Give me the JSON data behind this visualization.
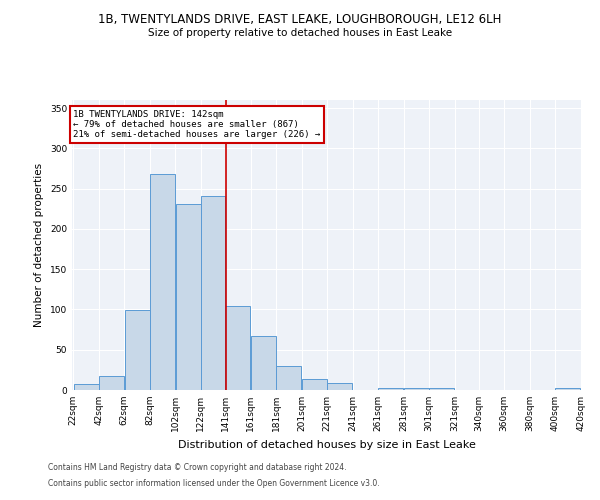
{
  "title1": "1B, TWENTYLANDS DRIVE, EAST LEAKE, LOUGHBOROUGH, LE12 6LH",
  "title2": "Size of property relative to detached houses in East Leake",
  "xlabel": "Distribution of detached houses by size in East Leake",
  "ylabel": "Number of detached properties",
  "bar_color": "#c8d8e8",
  "bar_edge_color": "#5b9bd5",
  "background_color": "#eef2f8",
  "grid_color": "#ffffff",
  "annotation_line_color": "#cc0000",
  "annotation_box_color": "#cc0000",
  "annotation_text": "1B TWENTYLANDS DRIVE: 142sqm\n← 79% of detached houses are smaller (867)\n21% of semi-detached houses are larger (226) →",
  "footer1": "Contains HM Land Registry data © Crown copyright and database right 2024.",
  "footer2": "Contains public sector information licensed under the Open Government Licence v3.0.",
  "property_size": 142,
  "bin_edges": [
    22,
    42,
    62,
    82,
    102,
    122,
    141,
    161,
    181,
    201,
    221,
    241,
    261,
    281,
    301,
    321,
    340,
    360,
    380,
    400,
    420
  ],
  "bar_heights": [
    7,
    18,
    99,
    268,
    231,
    241,
    104,
    67,
    30,
    14,
    9,
    0,
    3,
    3,
    2,
    0,
    0,
    0,
    0,
    2
  ],
  "ylim": [
    0,
    360
  ],
  "yticks": [
    0,
    50,
    100,
    150,
    200,
    250,
    300,
    350
  ],
  "title1_fontsize": 8.5,
  "title2_fontsize": 7.5,
  "xlabel_fontsize": 8,
  "ylabel_fontsize": 7.5,
  "tick_fontsize": 6.5,
  "annotation_fontsize": 6.5,
  "footer_fontsize": 5.5
}
